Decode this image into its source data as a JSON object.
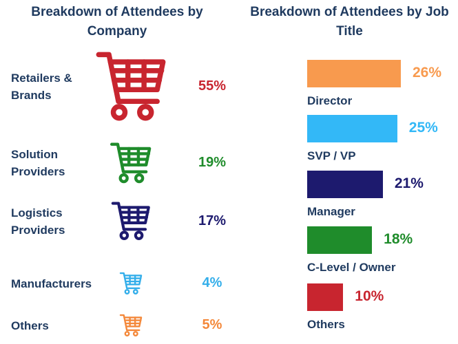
{
  "chart_data": [
    {
      "type": "bar",
      "title": "Breakdown of Attendees by Company",
      "categories": [
        "Retailers & Brands",
        "Solution Providers",
        "Logistics Providers",
        "Manufacturers",
        "Others"
      ],
      "values": [
        55,
        19,
        17,
        4,
        5
      ],
      "value_labels": [
        "55%",
        "19%",
        "17%",
        "4%",
        "5%"
      ],
      "colors": [
        "#c8252f",
        "#1f8c2b",
        "#1d1a6e",
        "#33aeea",
        "#f4883a"
      ],
      "marker": "shopping-cart-icon"
    },
    {
      "type": "bar",
      "title": "Breakdown of Attendees by Job Title",
      "categories": [
        "Director",
        "SVP / VP",
        "Manager",
        "C-Level / Owner",
        "Others"
      ],
      "values": [
        26,
        25,
        21,
        18,
        10
      ],
      "value_labels": [
        "26%",
        "25%",
        "21%",
        "18%",
        "10%"
      ],
      "colors": [
        "#f89a4e",
        "#33b8f7",
        "#1d1a6e",
        "#1f8c2b",
        "#c8252f"
      ]
    }
  ]
}
